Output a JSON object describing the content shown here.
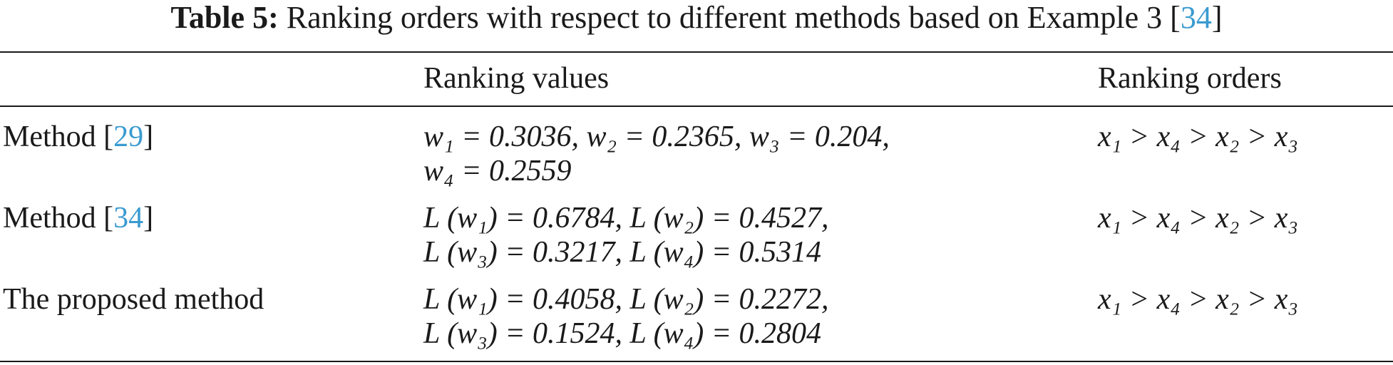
{
  "caption": {
    "label": "Table 5:",
    "text": "Ranking orders with respect to different methods based on Example 3 [",
    "ref": "34",
    "close": "]"
  },
  "table": {
    "headers": {
      "method": "",
      "values": "Ranking values",
      "orders": "Ranking orders"
    },
    "rows": [
      {
        "method_prefix": "Method [",
        "method_ref": "29",
        "method_suffix": "]",
        "values_line1": "w₁ = 0.3036, w₂ = 0.2365, w₃ = 0.204,",
        "values_line2": "w₄ = 0.2559",
        "order": "x₁ > x₄ > x₂ > x₃"
      },
      {
        "method_prefix": "Method [",
        "method_ref": "34",
        "method_suffix": "]",
        "values_line1": "L (w₁) = 0.6784, L (w₂) = 0.4527,",
        "values_line2": "L (w₃) = 0.3217, L (w₄) = 0.5314",
        "order": "x₁ > x₄ > x₂ > x₃"
      },
      {
        "method_prefix": "The proposed method",
        "method_ref": "",
        "method_suffix": "",
        "values_line1": "L (w₁) = 0.4058, L (w₂) = 0.2272,",
        "values_line2": "L (w₃) = 0.1524, L (w₄) = 0.2804",
        "order": "x₁ > x₄ > x₂ > x₃"
      }
    ]
  },
  "colors": {
    "text": "#1a1a1a",
    "citation_link": "#3a9bd0"
  }
}
